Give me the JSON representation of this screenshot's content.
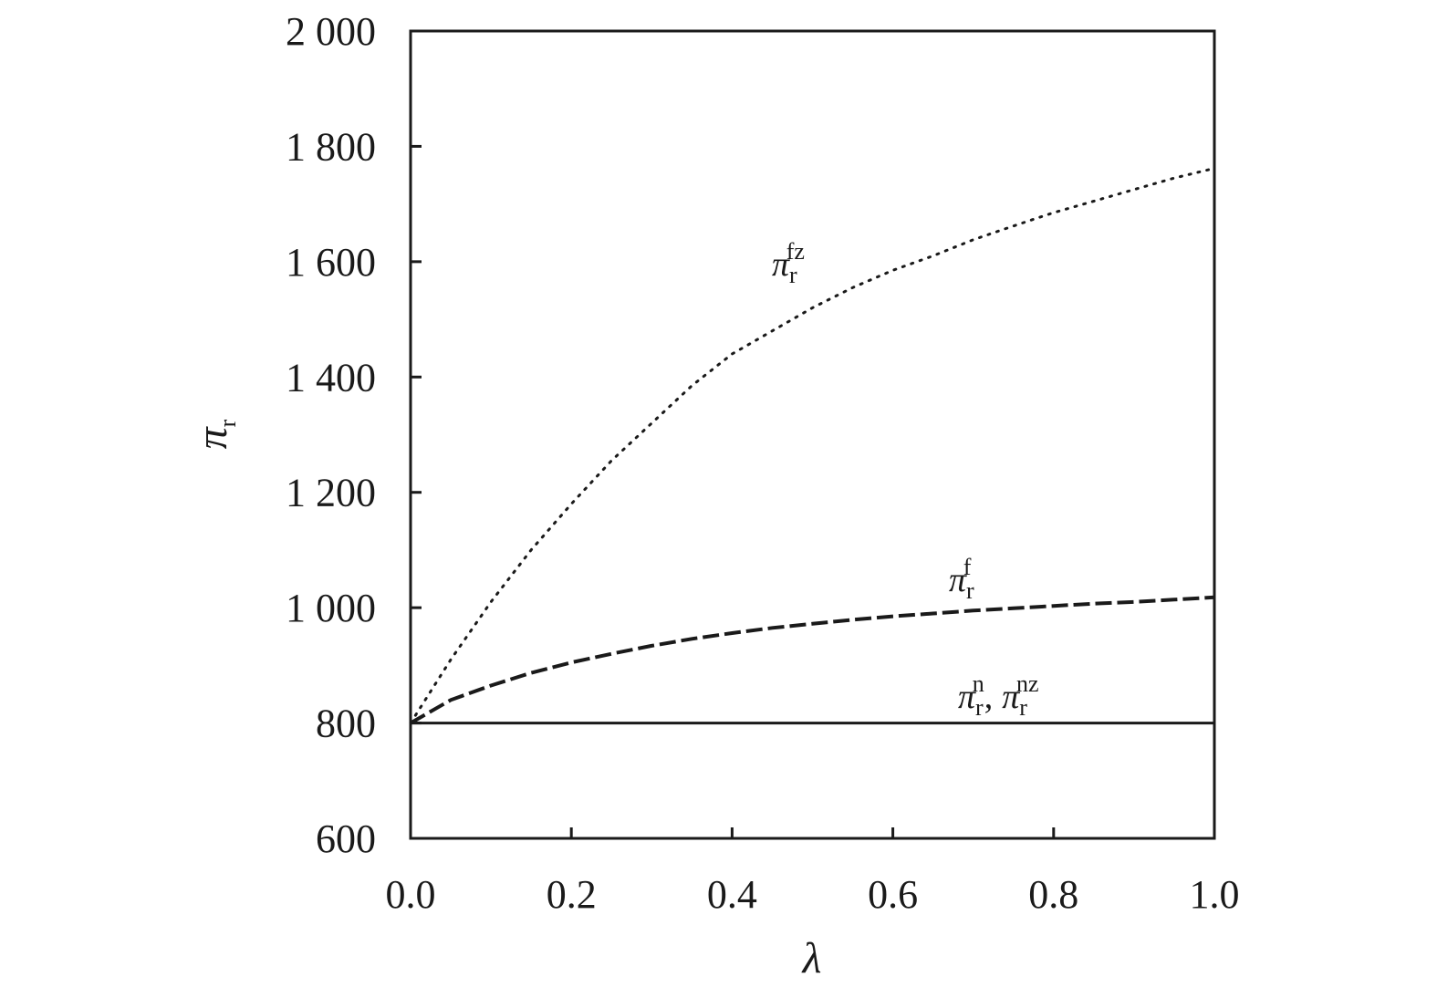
{
  "chart_data": {
    "type": "line",
    "xlabel": "λ",
    "ylabel": {
      "base": "π",
      "sub": "r"
    },
    "xlim": [
      0.0,
      1.0
    ],
    "ylim": [
      600,
      2000
    ],
    "xticks": [
      "0.0",
      "0.2",
      "0.4",
      "0.6",
      "0.8",
      "1.0"
    ],
    "xtick_values": [
      0.0,
      0.2,
      0.4,
      0.6,
      0.8,
      1.0
    ],
    "yticks": [
      "600",
      "800",
      "1 000",
      "1 200",
      "1 400",
      "1 600",
      "1 800",
      "2 000"
    ],
    "ytick_values": [
      600,
      800,
      1000,
      1200,
      1400,
      1600,
      1800,
      2000
    ],
    "grid": false,
    "series": [
      {
        "name": "π_r^fz",
        "style": "dotted",
        "x": [
          0.0,
          0.05,
          0.1,
          0.15,
          0.2,
          0.25,
          0.3,
          0.35,
          0.4,
          0.45,
          0.5,
          0.55,
          0.6,
          0.65,
          0.7,
          0.75,
          0.8,
          0.85,
          0.9,
          0.95,
          1.0
        ],
        "y": [
          800,
          910,
          1010,
          1100,
          1180,
          1255,
          1320,
          1385,
          1440,
          1480,
          1520,
          1555,
          1585,
          1610,
          1638,
          1662,
          1685,
          1705,
          1725,
          1745,
          1762
        ]
      },
      {
        "name": "π_r^f",
        "style": "dashed",
        "x": [
          0.0,
          0.05,
          0.1,
          0.15,
          0.2,
          0.25,
          0.3,
          0.35,
          0.4,
          0.45,
          0.5,
          0.55,
          0.6,
          0.65,
          0.7,
          0.75,
          0.8,
          0.85,
          0.9,
          0.95,
          1.0
        ],
        "y": [
          800,
          840,
          865,
          887,
          905,
          920,
          934,
          946,
          956,
          965,
          972,
          979,
          985,
          990,
          995,
          999,
          1003,
          1007,
          1010,
          1014,
          1018
        ]
      },
      {
        "name": "π_r^n, π_r^nz",
        "style": "solid",
        "x": [
          0.0,
          1.0
        ],
        "y": [
          800,
          800
        ]
      }
    ],
    "annotations": [
      {
        "base": "π",
        "sub": "r",
        "sup": "fz"
      },
      {
        "base": "π",
        "sub": "r",
        "sup": "f"
      },
      {
        "parts": [
          {
            "base": "π",
            "sub": "r",
            "sup": "n"
          },
          {
            "base": "π",
            "sub": "r",
            "sup": "nz"
          }
        ],
        "separator": ","
      }
    ]
  }
}
